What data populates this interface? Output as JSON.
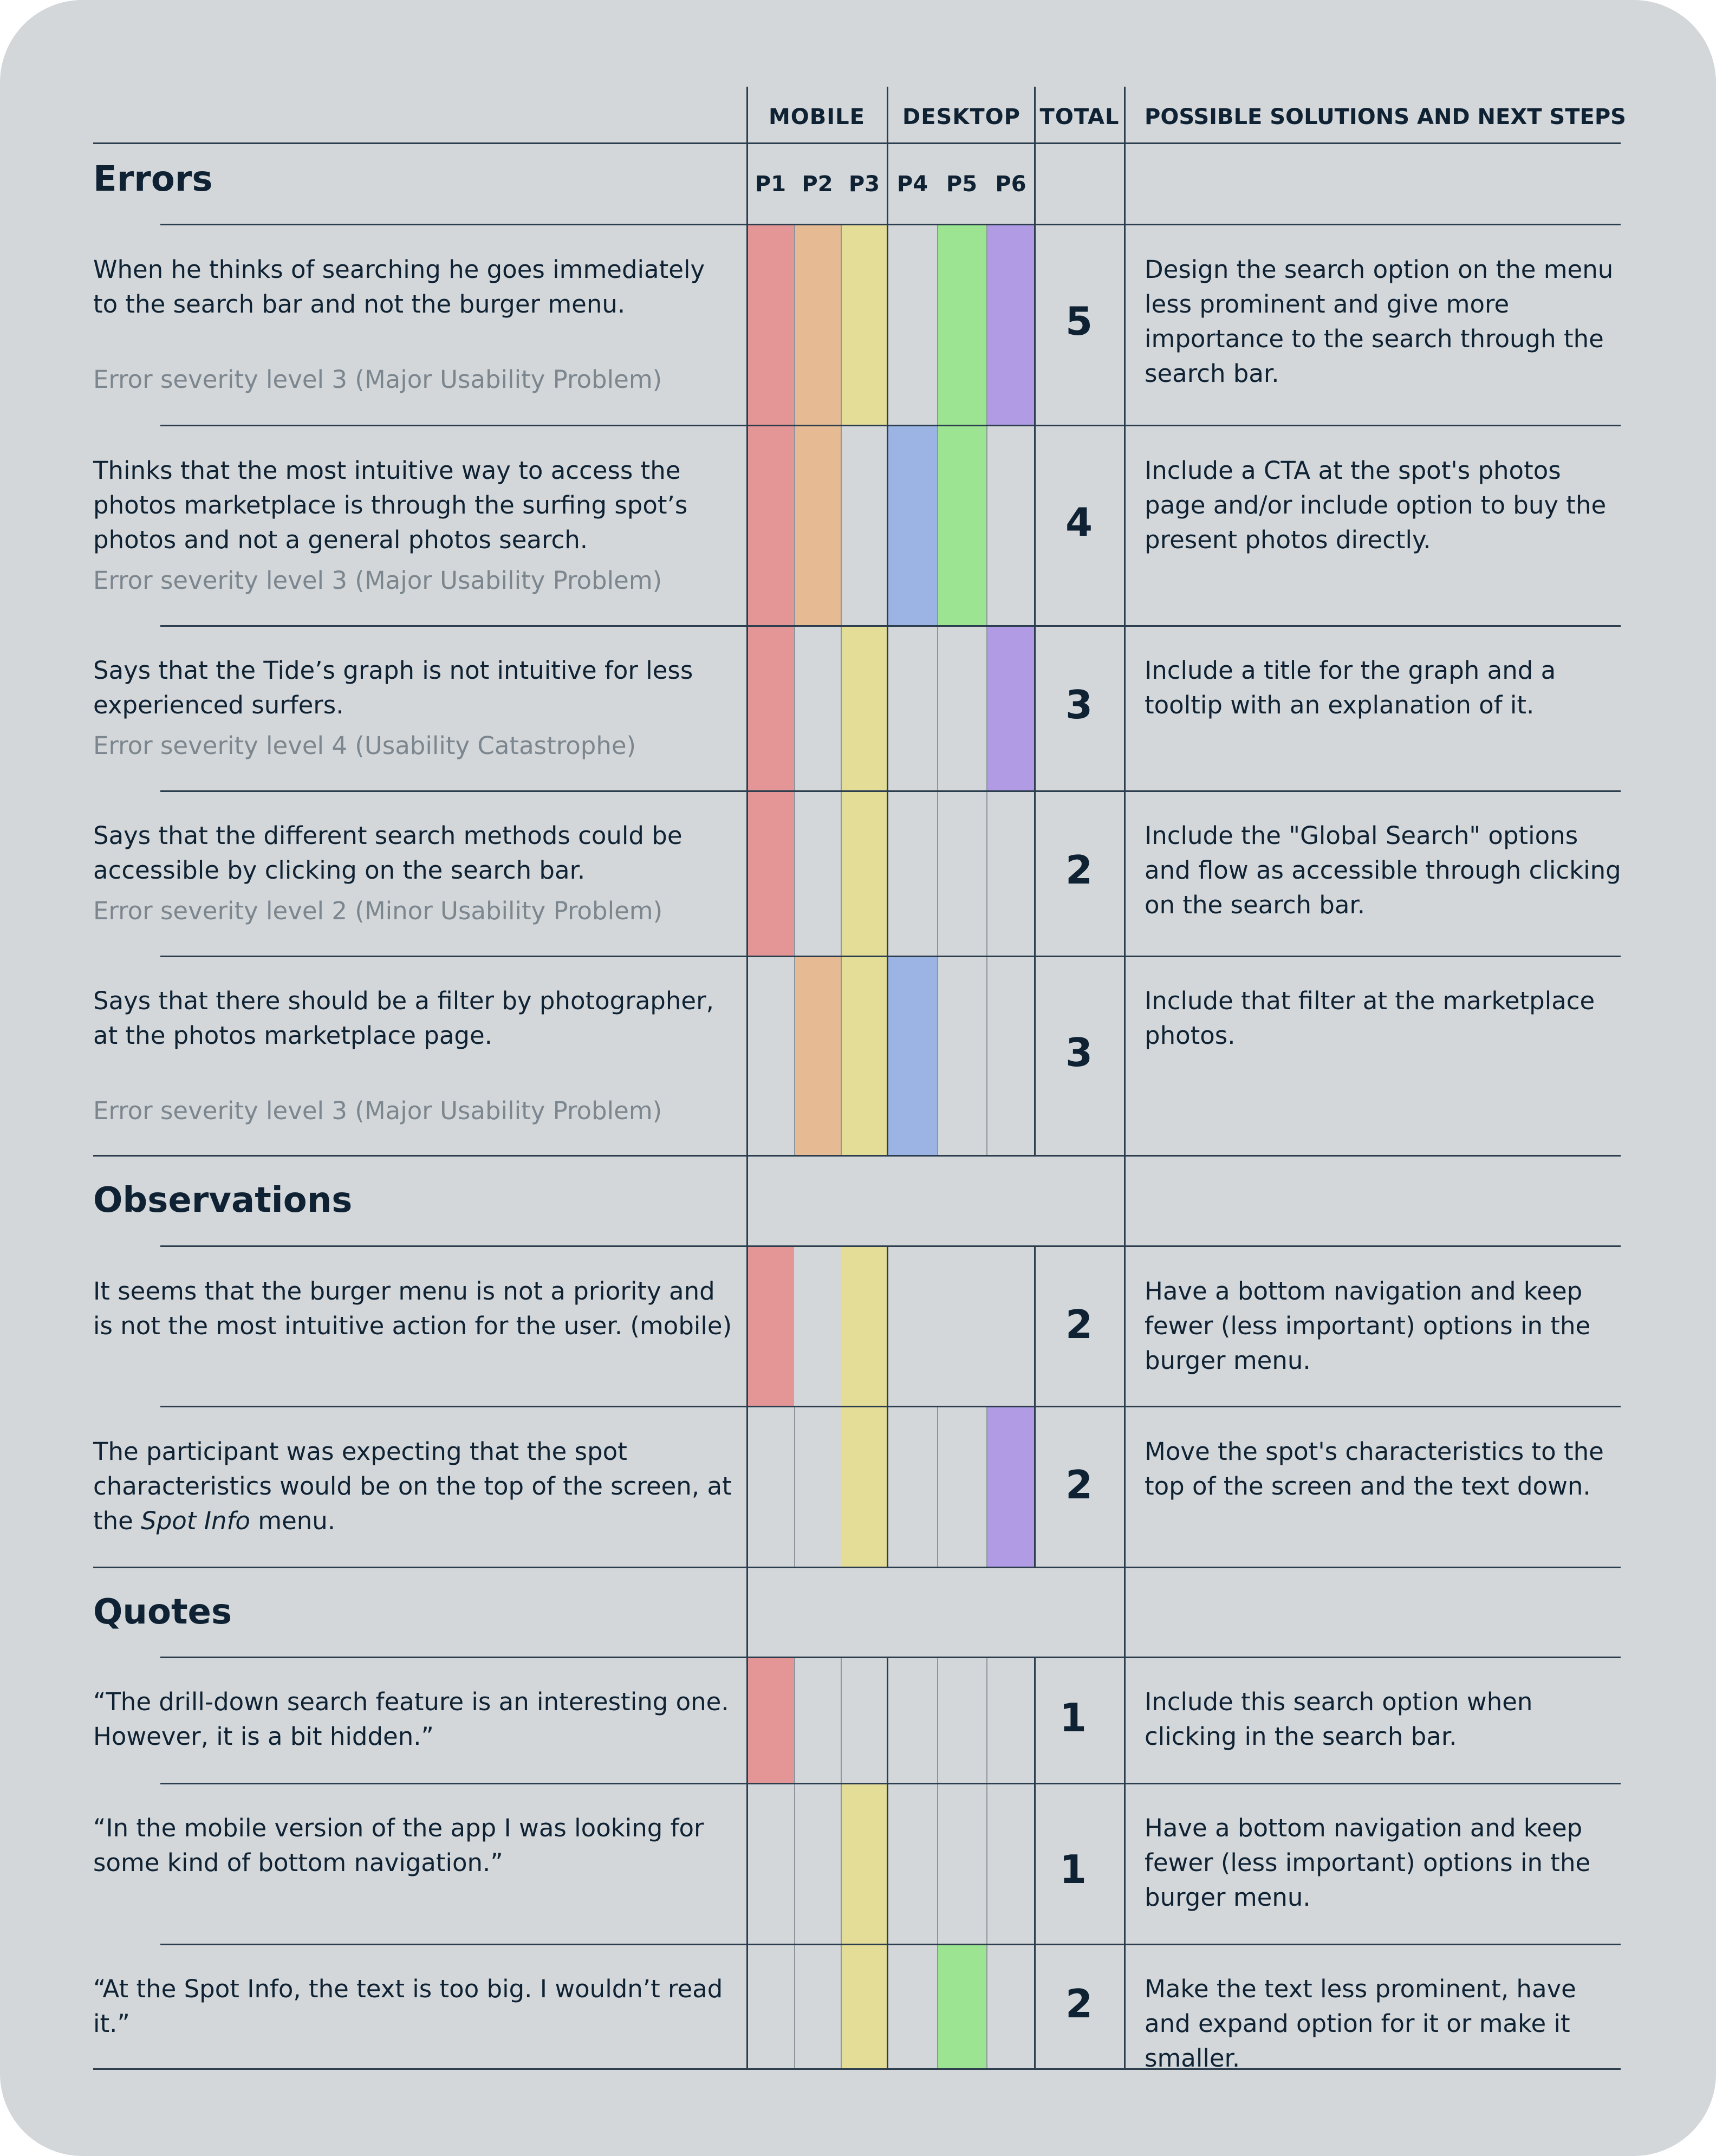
{
  "header": {
    "mobile": "MOBILE",
    "desktop": "DESKTOP",
    "total": "TOTAL",
    "solutions": "POSSIBLE SOLUTIONS AND NEXT STEPS",
    "participants": [
      "P1",
      "P2",
      "P3",
      "P4",
      "P5",
      "P6"
    ]
  },
  "colors": {
    "P1": "#e49696",
    "P2": "#e6bb94",
    "P3": "#e4dd98",
    "P4": "#9bb4e4",
    "P5": "#9ce492",
    "P6": "#b19be4"
  },
  "sections": {
    "errors": "Errors",
    "observations": "Observations",
    "quotes": "Quotes"
  },
  "rows": [
    {
      "text": "When he thinks of searching he goes immediately to the search bar and not the burger menu.",
      "severity": "Error severity level 3 (Major Usability Problem)",
      "participants": [
        1,
        1,
        1,
        0,
        1,
        1
      ],
      "total": "5",
      "solution": "Design the search option on the menu less prominent and give more importance to the search through the search bar."
    },
    {
      "text": "Thinks that the most intuitive way to access the photos marketplace is through the surfing spot’s photos and not a general photos search.",
      "severity": "Error severity level 3 (Major Usability Problem)",
      "participants": [
        1,
        1,
        0,
        1,
        1,
        0
      ],
      "total": "4",
      "solution": "Include a CTA at the spot's photos page and/or include option to buy the present photos directly."
    },
    {
      "text": "Says that the Tide’s graph is not intuitive for less experienced surfers.",
      "severity": "Error severity level 4 (Usability Catastrophe)",
      "participants": [
        1,
        0,
        1,
        0,
        0,
        1
      ],
      "total": "3",
      "solution": "Include a title for the graph and a tooltip with an explanation of it."
    },
    {
      "text": "Says that the different search methods could be accessible by clicking on the search bar.",
      "severity": "Error severity level 2 (Minor Usability Problem)",
      "participants": [
        1,
        0,
        1,
        0,
        0,
        0
      ],
      "total": "2",
      "solution": "Include the \"Global Search\" options and flow as accessible through clicking on the search bar."
    },
    {
      "text": "Says that there should be a filter by photographer, at the photos marketplace page.",
      "severity": "Error severity level 3 (Major Usability Problem)",
      "participants": [
        0,
        1,
        1,
        1,
        0,
        0
      ],
      "total": "3",
      "solution": "Include that filter at the marketplace photos."
    },
    {
      "text": "It seems that the burger menu is not a priority and is not the most intuitive action for the user. (mobile)",
      "participants": [
        1,
        0,
        1,
        0,
        0,
        0
      ],
      "total": "2",
      "solution": "Have a bottom navigation and keep fewer (less important) options in the burger menu."
    },
    {
      "text_before": "The participant was expecting that the spot characteristics would be on the top of the screen, at the ",
      "text_italic": "Spot Info",
      "text_after": " menu.",
      "participants": [
        0,
        0,
        1,
        0,
        0,
        1
      ],
      "total": "2",
      "solution": "Move the spot's characteristics to the top of the screen and the text down."
    },
    {
      "text": "“The drill-down search feature is an interesting one. However, it is a bit hidden.”",
      "participants": [
        1,
        0,
        0,
        0,
        0,
        0
      ],
      "total": "1",
      "solution": "Include this search option when clicking in the search bar."
    },
    {
      "text": "“In the mobile version of the app I was looking for some kind of bottom navigation.”",
      "participants": [
        0,
        0,
        1,
        0,
        0,
        0
      ],
      "total": "1",
      "solution": "Have a bottom navigation and keep fewer (less important) options in the burger menu."
    },
    {
      "text": "“At the Spot Info, the text is too big. I wouldn’t read it.”",
      "participants": [
        0,
        0,
        1,
        0,
        1,
        0
      ],
      "total": "2",
      "solution": "Make the text less prominent, have and expand option for it or make it smaller."
    }
  ]
}
